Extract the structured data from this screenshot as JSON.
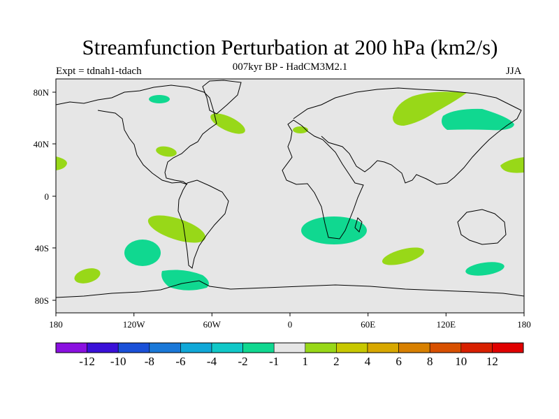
{
  "title": "Streamfunction Perturbation at 200 hPa (km2/s)",
  "subtitle": "007kyr BP - HadCM3M2.1",
  "experiment": "Expt = tdnah1-tdach",
  "season": "JJA",
  "axes": {
    "x_ticks": [
      "180",
      "120W",
      "60W",
      "0",
      "60E",
      "120E",
      "180"
    ],
    "y_ticks": [
      "80N",
      "40N",
      "0",
      "40S",
      "80S"
    ]
  },
  "colorbar": {
    "labels": [
      "-12",
      "-10",
      "-8",
      "-6",
      "-4",
      "-2",
      "-1",
      "1",
      "2",
      "4",
      "6",
      "8",
      "10",
      "12"
    ],
    "colors": [
      "#8a10e0",
      "#3a10d8",
      "#1a50d8",
      "#1a78d8",
      "#10a8d8",
      "#10c8c8",
      "#10d890",
      "#e6e6e6",
      "#98d818",
      "#c8c800",
      "#d8a800",
      "#d88000",
      "#d85000",
      "#d82000",
      "#e00000"
    ]
  },
  "colors": {
    "map_background": "#e6e6e6",
    "negative_anomaly": "#10d890",
    "positive_anomaly": "#98d818",
    "coastline": "#000000"
  }
}
